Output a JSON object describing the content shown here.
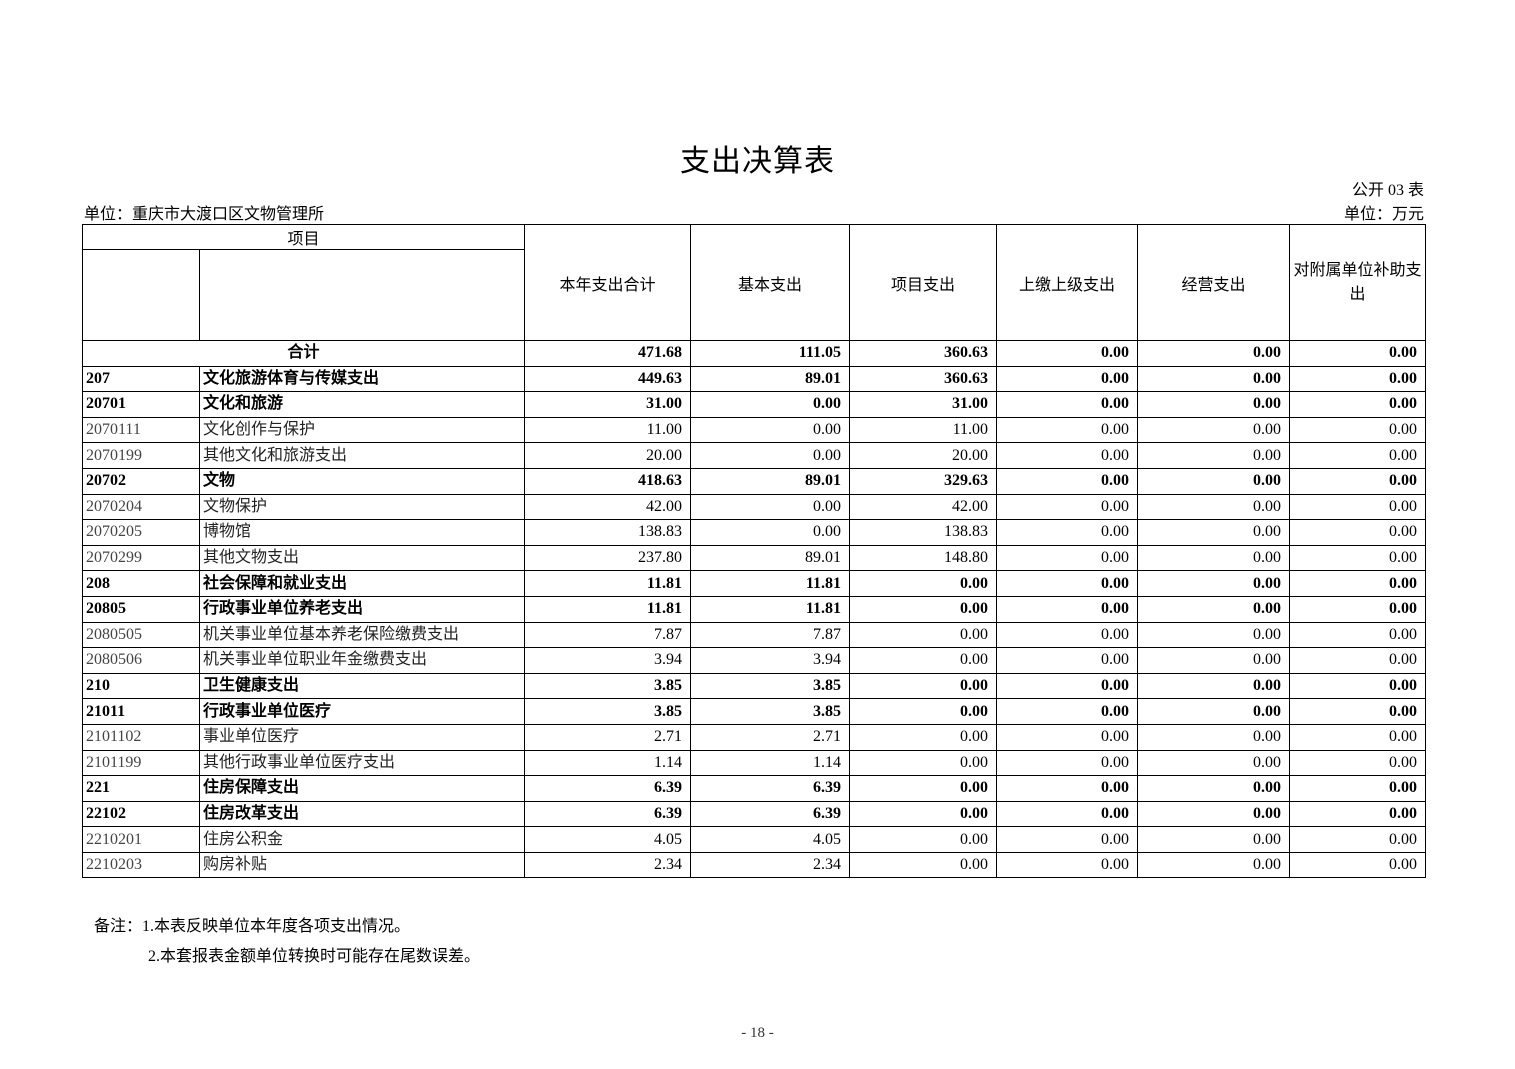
{
  "title": "支出决算表",
  "form_no": "公开 03 表",
  "unit_org": "单位：重庆市大渡口区文物管理所",
  "unit_money": "单位：万元",
  "headers": {
    "item": "项目",
    "c1": "本年支出合计",
    "c2": "基本支出",
    "c3": "项目支出",
    "c4": "上缴上级支出",
    "c5": "经营支出",
    "c6": "对附属单位补助支出"
  },
  "total": {
    "label": "合计",
    "values": [
      "471.68",
      "111.05",
      "360.63",
      "0.00",
      "0.00",
      "0.00"
    ]
  },
  "rows": [
    {
      "code": "207",
      "name": "文化旅游体育与传媒支出",
      "bold": true,
      "values": [
        "449.63",
        "89.01",
        "360.63",
        "0.00",
        "0.00",
        "0.00"
      ]
    },
    {
      "code": "20701",
      "name": "文化和旅游",
      "bold": true,
      "values": [
        "31.00",
        "0.00",
        "31.00",
        "0.00",
        "0.00",
        "0.00"
      ]
    },
    {
      "code": "2070111",
      "name": "文化创作与保护",
      "bold": false,
      "values": [
        "11.00",
        "0.00",
        "11.00",
        "0.00",
        "0.00",
        "0.00"
      ]
    },
    {
      "code": "2070199",
      "name": "其他文化和旅游支出",
      "bold": false,
      "values": [
        "20.00",
        "0.00",
        "20.00",
        "0.00",
        "0.00",
        "0.00"
      ]
    },
    {
      "code": "20702",
      "name": "文物",
      "bold": true,
      "values": [
        "418.63",
        "89.01",
        "329.63",
        "0.00",
        "0.00",
        "0.00"
      ]
    },
    {
      "code": "2070204",
      "name": "文物保护",
      "bold": false,
      "values": [
        "42.00",
        "0.00",
        "42.00",
        "0.00",
        "0.00",
        "0.00"
      ]
    },
    {
      "code": "2070205",
      "name": "博物馆",
      "bold": false,
      "values": [
        "138.83",
        "0.00",
        "138.83",
        "0.00",
        "0.00",
        "0.00"
      ]
    },
    {
      "code": "2070299",
      "name": "其他文物支出",
      "bold": false,
      "values": [
        "237.80",
        "89.01",
        "148.80",
        "0.00",
        "0.00",
        "0.00"
      ]
    },
    {
      "code": "208",
      "name": "社会保障和就业支出",
      "bold": true,
      "values": [
        "11.81",
        "11.81",
        "0.00",
        "0.00",
        "0.00",
        "0.00"
      ]
    },
    {
      "code": "20805",
      "name": "行政事业单位养老支出",
      "bold": true,
      "values": [
        "11.81",
        "11.81",
        "0.00",
        "0.00",
        "0.00",
        "0.00"
      ]
    },
    {
      "code": "2080505",
      "name": "机关事业单位基本养老保险缴费支出",
      "bold": false,
      "values": [
        "7.87",
        "7.87",
        "0.00",
        "0.00",
        "0.00",
        "0.00"
      ]
    },
    {
      "code": "2080506",
      "name": "机关事业单位职业年金缴费支出",
      "bold": false,
      "values": [
        "3.94",
        "3.94",
        "0.00",
        "0.00",
        "0.00",
        "0.00"
      ]
    },
    {
      "code": "210",
      "name": "卫生健康支出",
      "bold": true,
      "values": [
        "3.85",
        "3.85",
        "0.00",
        "0.00",
        "0.00",
        "0.00"
      ]
    },
    {
      "code": "21011",
      "name": "行政事业单位医疗",
      "bold": true,
      "values": [
        "3.85",
        "3.85",
        "0.00",
        "0.00",
        "0.00",
        "0.00"
      ]
    },
    {
      "code": "2101102",
      "name": "事业单位医疗",
      "bold": false,
      "values": [
        "2.71",
        "2.71",
        "0.00",
        "0.00",
        "0.00",
        "0.00"
      ]
    },
    {
      "code": "2101199",
      "name": "其他行政事业单位医疗支出",
      "bold": false,
      "values": [
        "1.14",
        "1.14",
        "0.00",
        "0.00",
        "0.00",
        "0.00"
      ]
    },
    {
      "code": "221",
      "name": "住房保障支出",
      "bold": true,
      "values": [
        "6.39",
        "6.39",
        "0.00",
        "0.00",
        "0.00",
        "0.00"
      ]
    },
    {
      "code": "22102",
      "name": "住房改革支出",
      "bold": true,
      "values": [
        "6.39",
        "6.39",
        "0.00",
        "0.00",
        "0.00",
        "0.00"
      ]
    },
    {
      "code": "2210201",
      "name": "住房公积金",
      "bold": false,
      "values": [
        "4.05",
        "4.05",
        "0.00",
        "0.00",
        "0.00",
        "0.00"
      ]
    },
    {
      "code": "2210203",
      "name": "购房补贴",
      "bold": false,
      "values": [
        "2.34",
        "2.34",
        "0.00",
        "0.00",
        "0.00",
        "0.00"
      ]
    }
  ],
  "notes": [
    "备注：1.本表反映单位本年度各项支出情况。",
    "2.本套报表金额单位转换时可能存在尾数误差。"
  ],
  "page_number": "- 18 -"
}
